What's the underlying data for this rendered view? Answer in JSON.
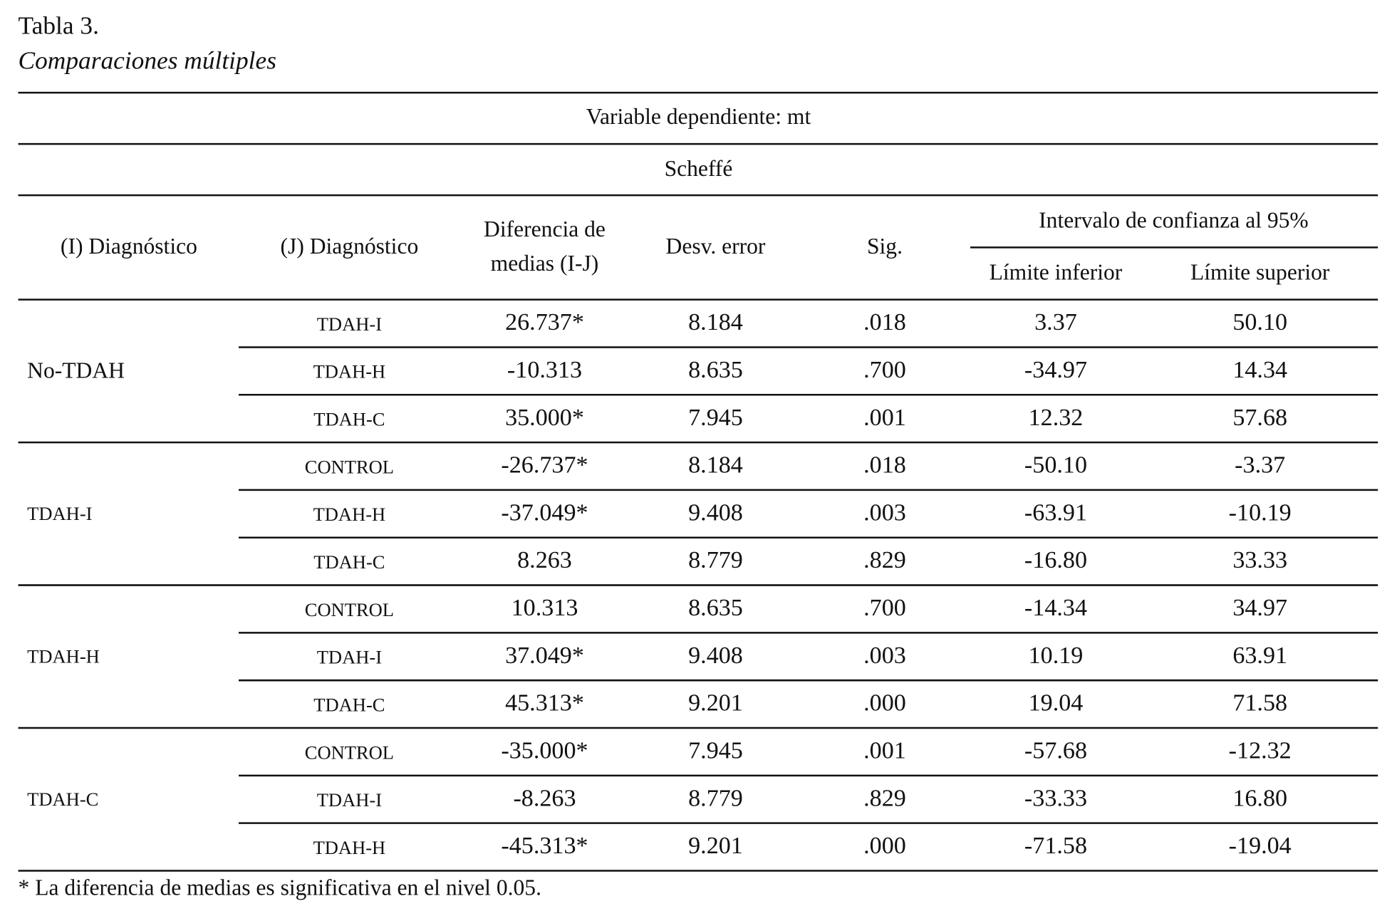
{
  "caption": {
    "label": "Tabla 3.",
    "title": "Comparaciones múltiples"
  },
  "table": {
    "variable": "Variable dependiente: mt",
    "method": "Scheffé",
    "columns": [
      "(I) Diagnóstico",
      "(J) Diagnóstico",
      "Diferencia de",
      "medias (I-J)",
      "Desv. error",
      "Sig."
    ],
    "interval": {
      "title": "Intervalo de confianza al 95%",
      "lower": "Límite inferior",
      "upper": "Límite superior"
    },
    "groups": [
      {
        "i": "No-TDAH",
        "rows": [
          [
            "TDAH-I",
            "26.737*",
            "8.184",
            ".018",
            "3.37",
            "50.10"
          ],
          [
            "TDAH-H",
            "-10.313",
            "8.635",
            ".700",
            "-34.97",
            "14.34"
          ],
          [
            "TDAH-C",
            "35.000*",
            "7.945",
            ".001",
            "12.32",
            "57.68"
          ]
        ]
      },
      {
        "i": "TDAH-I",
        "rows": [
          [
            "CONTROL",
            "-26.737*",
            "8.184",
            ".018",
            "-50.10",
            "-3.37"
          ],
          [
            "TDAH-H",
            "-37.049*",
            "9.408",
            ".003",
            "-63.91",
            "-10.19"
          ],
          [
            "TDAH-C",
            "8.263",
            "8.779",
            ".829",
            "-16.80",
            "33.33"
          ]
        ]
      },
      {
        "i": "TDAH-H",
        "rows": [
          [
            "CONTROL",
            "10.313",
            "8.635",
            ".700",
            "-14.34",
            "34.97"
          ],
          [
            "TDAH-I",
            "37.049*",
            "9.408",
            ".003",
            "10.19",
            "63.91"
          ],
          [
            "TDAH-C",
            "45.313*",
            "9.201",
            ".000",
            "19.04",
            "71.58"
          ]
        ]
      },
      {
        "i": "TDAH-C",
        "rows": [
          [
            "CONTROL",
            "-35.000*",
            "7.945",
            ".001",
            "-57.68",
            "-12.32"
          ],
          [
            "TDAH-I",
            "-8.263",
            "8.779",
            ".829",
            "-33.33",
            "16.80"
          ],
          [
            "TDAH-H",
            "-45.313*",
            "9.201",
            ".000",
            "-71.58",
            "-19.04"
          ]
        ]
      }
    ]
  },
  "footnote": "* La diferencia de medias es significativa en el nivel 0.05."
}
